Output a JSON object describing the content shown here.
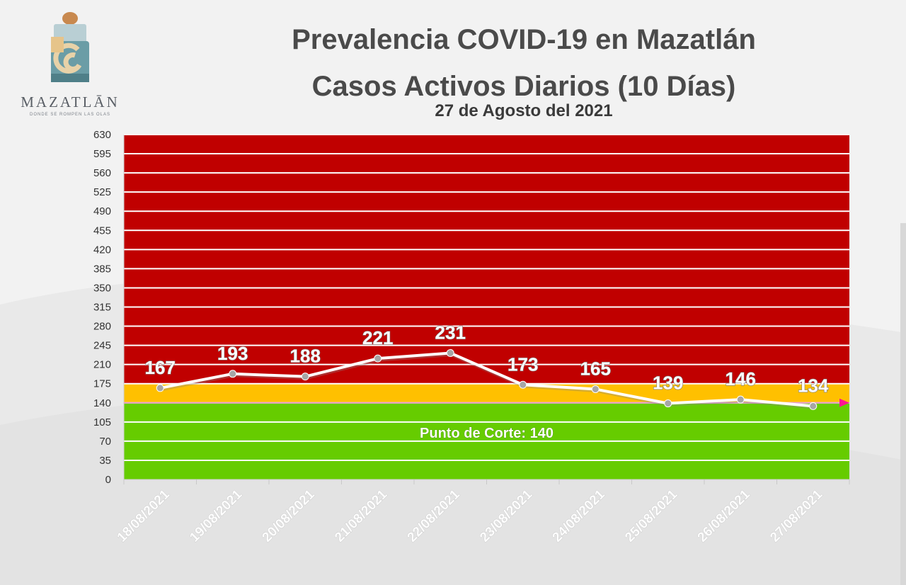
{
  "logo": {
    "name": "MAZATLĀN",
    "tagline": "DONDE SE ROMPEN LAS OLAS"
  },
  "colors": {
    "red_zone": "#c00000",
    "yellow_zone": "#ffc000",
    "green_zone": "#66cc00",
    "line": "#ffffff",
    "marker": "#a6a6a6",
    "cutoff_arrow": "#ff1493"
  },
  "chart_data": {
    "type": "line",
    "title": "Prevalencia COVID-19 en Mazatlán",
    "subtitle": "Casos Activos Diarios (10 Días)",
    "date": "27 de Agosto del 2021",
    "categories": [
      "18/08/2021",
      "19/08/2021",
      "20/08/2021",
      "21/08/2021",
      "22/08/2021",
      "23/08/2021",
      "24/08/2021",
      "25/08/2021",
      "26/08/2021",
      "27/08/2021"
    ],
    "values": [
      167,
      193,
      188,
      221,
      231,
      173,
      165,
      139,
      146,
      134
    ],
    "ylim": [
      0,
      630
    ],
    "yticks": [
      0,
      35,
      70,
      105,
      140,
      175,
      210,
      245,
      280,
      315,
      350,
      385,
      420,
      455,
      490,
      525,
      560,
      595,
      630
    ],
    "grid": true,
    "bands": [
      {
        "from": 0,
        "to": 140,
        "color": "green"
      },
      {
        "from": 140,
        "to": 175,
        "color": "yellow"
      },
      {
        "from": 175,
        "to": 630,
        "color": "red"
      }
    ],
    "cutoff": {
      "value": 140,
      "label": "Punto de Corte: 140"
    }
  }
}
